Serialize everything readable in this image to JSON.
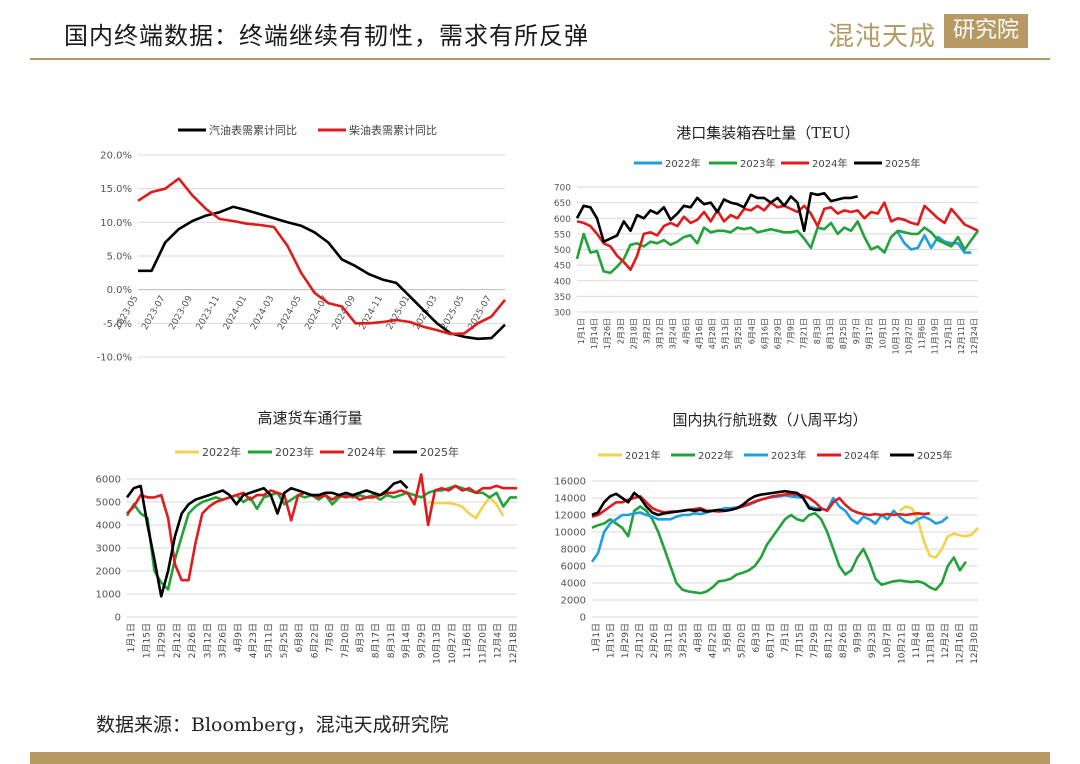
{
  "header": {
    "title": "国内终端数据：终端继续有韧性，需求有所反弹",
    "logo_left": "混沌天成",
    "logo_box": "研究院"
  },
  "footer": {
    "source": "数据来源：Bloomberg，混沌天成研究院"
  },
  "colors": {
    "accent": "#b79a63"
  },
  "chart_data": [
    {
      "id": "fuel",
      "type": "line",
      "title": "",
      "categories": [
        "2023-05",
        "2023-06",
        "2023-07",
        "2023-08",
        "2023-09",
        "2023-10",
        "2023-11",
        "2023-12",
        "2024-01",
        "2024-02",
        "2024-03",
        "2024-04",
        "2024-05",
        "2024-06",
        "2024-07",
        "2024-08",
        "2024-09",
        "2024-10",
        "2024-11",
        "2024-12",
        "2025-01",
        "2025-02",
        "2025-03",
        "2025-04",
        "2025-05",
        "2025-06",
        "2025-07",
        "2025-08"
      ],
      "tick_labels": [
        "2023-05",
        "2023-07",
        "2023-09",
        "2023-11",
        "2024-01",
        "2024-03",
        "2024-05",
        "2024-07",
        "2024-09",
        "2024-11",
        "2025-01",
        "2025-03",
        "2025-05",
        "2025-07"
      ],
      "ylim": [
        -10,
        20
      ],
      "yticks": [
        "20.0%",
        "15.0%",
        "10.0%",
        "5.0%",
        "0.0%",
        "-5.0%",
        "-10.0%"
      ],
      "legend": [
        "汽油表需累计同比",
        "柴油表需累计同比"
      ],
      "series": [
        {
          "name": "汽油表需累计同比",
          "color": "#000000",
          "values": [
            2.8,
            2.8,
            7.0,
            9.0,
            10.2,
            11.0,
            11.5,
            12.3,
            11.8,
            11.2,
            10.6,
            10.0,
            9.5,
            8.5,
            7.0,
            4.5,
            3.5,
            2.3,
            1.5,
            1.0,
            -1.0,
            -3.0,
            -5.0,
            -6.5,
            -7.0,
            -7.3,
            -7.2,
            -5.2
          ]
        },
        {
          "name": "柴油表需累计同比",
          "color": "#e01b1b",
          "values": [
            13.2,
            14.5,
            15.0,
            16.5,
            14.0,
            12.0,
            10.5,
            10.2,
            9.8,
            9.6,
            9.3,
            6.5,
            2.5,
            -0.5,
            -2.0,
            -2.5,
            -5.0,
            -5.0,
            -4.8,
            -4.5,
            -4.8,
            -5.5,
            -6.0,
            -6.6,
            -6.5,
            -5.0,
            -4.0,
            -1.5
          ]
        }
      ]
    },
    {
      "id": "port",
      "type": "line",
      "title": "港口集装箱吞吐量（TEU）",
      "ylim": [
        300,
        700
      ],
      "yticks": [
        "700",
        "650",
        "600",
        "550",
        "500",
        "450",
        "400",
        "350",
        "300"
      ],
      "x_labels": [
        "1月1日",
        "1月14日",
        "1月26日",
        "2月3日",
        "2月18日",
        "3月2日",
        "3月12日",
        "3月24日",
        "4月6日",
        "4月16日",
        "4月28日",
        "5月13日",
        "5月25日",
        "6月4日",
        "6月16日",
        "6月29日",
        "7月9日",
        "7月21日",
        "8月3日",
        "8月13日",
        "8月25日",
        "9月7日",
        "9月17日",
        "10月1日",
        "10月12日",
        "10月27日",
        "11月6日",
        "11月19日",
        "12月1日",
        "12月11日",
        "12月24日"
      ],
      "legend": [
        "2022年",
        "2023年",
        "2024年",
        "2025年"
      ],
      "series": [
        {
          "name": "2022年",
          "color": "#1f9fe0",
          "values": [
            null,
            null,
            null,
            null,
            null,
            null,
            null,
            null,
            null,
            null,
            null,
            null,
            null,
            null,
            null,
            null,
            null,
            null,
            null,
            null,
            null,
            null,
            null,
            null,
            null,
            null,
            null,
            null,
            null,
            null,
            null,
            null,
            null,
            null,
            null,
            null,
            null,
            null,
            null,
            null,
            null,
            null,
            null,
            null,
            null,
            null,
            null,
            null,
            555,
            520,
            500,
            505,
            545,
            505,
            540,
            525,
            520,
            520,
            490,
            490
          ]
        },
        {
          "name": "2023年",
          "color": "#22a33a",
          "values": [
            470,
            550,
            490,
            495,
            430,
            425,
            445,
            470,
            515,
            520,
            510,
            525,
            520,
            530,
            515,
            525,
            540,
            545,
            520,
            570,
            555,
            560,
            560,
            555,
            570,
            565,
            570,
            555,
            560,
            565,
            560,
            555,
            555,
            560,
            535,
            505,
            570,
            565,
            585,
            550,
            570,
            560,
            590,
            540,
            500,
            510,
            490,
            540,
            560,
            555,
            550,
            550,
            570,
            555,
            530,
            520,
            510,
            540,
            500,
            530,
            560
          ]
        },
        {
          "name": "2024年",
          "color": "#e01b1b",
          "values": [
            590,
            585,
            575,
            550,
            520,
            510,
            480,
            460,
            435,
            480,
            550,
            555,
            545,
            575,
            585,
            575,
            605,
            585,
            595,
            620,
            590,
            625,
            590,
            610,
            600,
            630,
            625,
            640,
            625,
            650,
            635,
            640,
            630,
            620,
            640,
            615,
            575,
            630,
            635,
            615,
            625,
            620,
            625,
            600,
            620,
            615,
            650,
            590,
            600,
            595,
            585,
            580,
            640,
            620,
            600,
            585,
            630,
            605,
            580,
            570,
            560
          ]
        },
        {
          "name": "2025年",
          "color": "#000000",
          "values": [
            600,
            640,
            635,
            600,
            525,
            535,
            545,
            590,
            560,
            610,
            600,
            625,
            615,
            635,
            595,
            615,
            640,
            635,
            665,
            645,
            650,
            620,
            660,
            650,
            645,
            635,
            675,
            665,
            665,
            650,
            665,
            640,
            670,
            650,
            560,
            680,
            675,
            680,
            655,
            660,
            665,
            665,
            670
          ]
        }
      ]
    },
    {
      "id": "truck",
      "type": "line",
      "title": "高速货车通行量",
      "ylim": [
        0,
        6000
      ],
      "yticks": [
        "6000",
        "5000",
        "4000",
        "3000",
        "2000",
        "1000",
        "0"
      ],
      "x_labels": [
        "1月1日",
        "1月15日",
        "1月29日",
        "2月12日",
        "2月26日",
        "3月12日",
        "3月26日",
        "4月9日",
        "4月23日",
        "5月11日",
        "5月25日",
        "6月8日",
        "6月22日",
        "7月6日",
        "7月20日",
        "8月3日",
        "8月17日",
        "8月31日",
        "9月14日",
        "9月29日",
        "10月13日",
        "10月27日",
        "11月6日",
        "11月20日",
        "12月4日",
        "12月18日"
      ],
      "legend": [
        "2022年",
        "2023年",
        "2024年",
        "2025年"
      ],
      "series": [
        {
          "name": "2022年",
          "color": "#f2d250",
          "values": [
            null,
            null,
            null,
            null,
            null,
            null,
            null,
            null,
            null,
            null,
            null,
            null,
            null,
            null,
            null,
            null,
            null,
            null,
            null,
            null,
            null,
            null,
            null,
            null,
            null,
            null,
            null,
            null,
            null,
            null,
            null,
            null,
            null,
            null,
            null,
            null,
            null,
            null,
            null,
            null,
            null,
            null,
            null,
            null,
            5000,
            4950,
            4950,
            4950,
            4900,
            4800,
            4500,
            4300,
            4800,
            5200,
            4900,
            4400
          ]
        },
        {
          "name": "2023年",
          "color": "#22a33a",
          "values": [
            4400,
            4900,
            4500,
            4300,
            2000,
            1500,
            1200,
            2500,
            3500,
            4500,
            4800,
            5000,
            5100,
            5200,
            5100,
            5200,
            5300,
            5000,
            5200,
            4700,
            5200,
            5300,
            5400,
            4900,
            5100,
            5300,
            5200,
            5300,
            5100,
            5300,
            4900,
            5200,
            5300,
            5200,
            5300,
            5200,
            5300,
            5100,
            5300,
            5200,
            5300,
            5400,
            5300,
            5200,
            5400,
            5500,
            5500,
            5600,
            5700,
            5600,
            5500,
            5400,
            5400,
            5200,
            5400,
            4800,
            5200,
            5200
          ]
        },
        {
          "name": "2024年",
          "color": "#e01b1b",
          "values": [
            4500,
            4800,
            5300,
            5200,
            5200,
            5300,
            4300,
            2300,
            1600,
            1600,
            3200,
            4500,
            4800,
            5000,
            5100,
            5200,
            5300,
            5400,
            5100,
            5300,
            5300,
            5500,
            5400,
            5300,
            4200,
            5300,
            5400,
            5300,
            5200,
            5300,
            5100,
            5300,
            5200,
            5300,
            5100,
            5200,
            5200,
            5300,
            5400,
            5400,
            5500,
            5400,
            4900,
            6200,
            4000,
            5500,
            5600,
            5500,
            5700,
            5500,
            5600,
            5400,
            5600,
            5600,
            5700,
            5600,
            5600,
            5600
          ]
        },
        {
          "name": "2025年",
          "color": "#000000",
          "values": [
            5200,
            5600,
            5700,
            4000,
            2500,
            900,
            2000,
            3500,
            4500,
            4900,
            5100,
            5200,
            5300,
            5400,
            5500,
            5300,
            4900,
            5300,
            5400,
            5500,
            5600,
            5300,
            4500,
            5400,
            5600,
            5500,
            5400,
            5300,
            5300,
            5400,
            5400,
            5300,
            5400,
            5300,
            5400,
            5500,
            5400,
            5300,
            5500,
            5800,
            5900,
            5600
          ]
        }
      ]
    },
    {
      "id": "flights",
      "type": "line",
      "title": "国内执行航班数（八周平均）",
      "ylim": [
        0,
        16000
      ],
      "yticks": [
        "16000",
        "14000",
        "12000",
        "10000",
        "8000",
        "6000",
        "4000",
        "2000",
        "0"
      ],
      "x_labels": [
        "1月1日",
        "1月15日",
        "1月29日",
        "2月12日",
        "2月26日",
        "3月11日",
        "3月25日",
        "4月8日",
        "4月22日",
        "5月6日",
        "5月20日",
        "6月3日",
        "6月17日",
        "7月1日",
        "7月15日",
        "7月29日",
        "8月12日",
        "8月26日",
        "9月9日",
        "9月23日",
        "10月7日",
        "10月21日",
        "11月4日",
        "11月18日",
        "12月2日",
        "12月16日",
        "12月30日"
      ],
      "legend": [
        "2021年",
        "2022年",
        "2023年",
        "2024年",
        "2025年"
      ],
      "series": [
        {
          "name": "2021年",
          "color": "#f2d250",
          "values": [
            null,
            null,
            null,
            null,
            null,
            null,
            null,
            null,
            null,
            null,
            null,
            null,
            null,
            null,
            null,
            null,
            null,
            null,
            null,
            null,
            null,
            null,
            null,
            null,
            null,
            null,
            null,
            null,
            null,
            null,
            null,
            null,
            null,
            null,
            null,
            null,
            null,
            null,
            null,
            null,
            null,
            null,
            null,
            null,
            null,
            null,
            null,
            null,
            null,
            null,
            null,
            12500,
            13000,
            12800,
            11500,
            9000,
            7200,
            7000,
            8000,
            9500,
            9800,
            9600,
            9500,
            9700,
            10500
          ]
        },
        {
          "name": "2022年",
          "color": "#22a33a",
          "values": [
            10500,
            10800,
            11000,
            11500,
            11000,
            10500,
            9500,
            12500,
            13000,
            12500,
            11500,
            10000,
            8000,
            6000,
            4000,
            3200,
            3000,
            2900,
            2800,
            3000,
            3500,
            4200,
            4300,
            4500,
            5000,
            5200,
            5500,
            6000,
            7000,
            8500,
            9500,
            10500,
            11500,
            12000,
            11500,
            11300,
            12000,
            12200,
            11500,
            10000,
            8000,
            6000,
            5000,
            5500,
            7000,
            8000,
            6500,
            4500,
            3800,
            4000,
            4200,
            4300,
            4200,
            4100,
            4200,
            4000,
            3500,
            3200,
            4000,
            6000,
            7000,
            5500,
            6500
          ]
        },
        {
          "name": "2023年",
          "color": "#1f9fe0",
          "values": [
            6500,
            7500,
            10000,
            11000,
            11500,
            12000,
            12000,
            12200,
            12300,
            12000,
            11800,
            11500,
            11500,
            11500,
            11800,
            12000,
            12000,
            12200,
            12100,
            12300,
            12500,
            12600,
            12800,
            12800,
            12900,
            13000,
            13200,
            13500,
            13800,
            14000,
            14100,
            14200,
            14300,
            14200,
            14100,
            14000,
            13000,
            12800,
            12700,
            12600,
            14000,
            13000,
            12500,
            11500,
            11000,
            11800,
            11500,
            11000,
            12000,
            11500,
            12500,
            11800,
            11200,
            11000,
            11500,
            11800,
            11500,
            11000,
            11200,
            11800
          ]
        },
        {
          "name": "2024年",
          "color": "#e01b1b",
          "values": [
            11800,
            12000,
            12500,
            13000,
            13500,
            13500,
            13800,
            14000,
            14200,
            13500,
            12800,
            12500,
            12300,
            12400,
            12400,
            12500,
            12600,
            12700,
            12800,
            12500,
            12500,
            12400,
            12500,
            12600,
            12800,
            13000,
            13300,
            13600,
            13800,
            14000,
            14200,
            14300,
            14400,
            14500,
            14400,
            14300,
            14000,
            13500,
            12800,
            12500,
            13500,
            14000,
            13200,
            12600,
            12300,
            12100,
            12000,
            12100,
            12000,
            12100,
            12000,
            12100,
            12000,
            12100,
            12200,
            12100,
            12200
          ]
        },
        {
          "name": "2025年",
          "color": "#000000",
          "values": [
            12000,
            12300,
            13500,
            14200,
            14500,
            14000,
            13500,
            14600,
            14000,
            13000,
            12300,
            12000,
            12200,
            12300,
            12400,
            12500,
            12600,
            12500,
            12600,
            12400,
            12500,
            12600,
            12500,
            12600,
            12800,
            13200,
            13800,
            14200,
            14400,
            14500,
            14600,
            14700,
            14800,
            14700,
            14600,
            14000,
            12800,
            12600,
            12600
          ]
        }
      ]
    }
  ]
}
